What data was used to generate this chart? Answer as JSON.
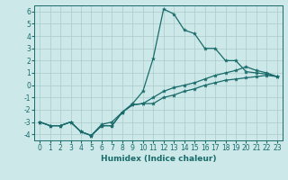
{
  "xlabel": "Humidex (Indice chaleur)",
  "bg_color": "#cce8e8",
  "grid_color": "#aacccc",
  "line_color": "#1a6b6b",
  "x_values": [
    0,
    1,
    2,
    3,
    4,
    5,
    6,
    7,
    8,
    9,
    10,
    11,
    12,
    13,
    14,
    15,
    16,
    17,
    18,
    19,
    20,
    21,
    22,
    23
  ],
  "line1": [
    -3.0,
    -3.3,
    -3.3,
    -3.0,
    -3.8,
    -4.1,
    -3.3,
    -3.3,
    -2.2,
    -1.6,
    -1.5,
    -1.5,
    -1.0,
    -0.8,
    -0.5,
    -0.3,
    0.0,
    0.2,
    0.4,
    0.5,
    0.6,
    0.7,
    0.8,
    0.7
  ],
  "line2": [
    -3.0,
    -3.3,
    -3.3,
    -3.0,
    -3.8,
    -4.1,
    -3.2,
    -3.0,
    -2.2,
    -1.5,
    -0.5,
    2.2,
    6.2,
    5.8,
    4.5,
    4.2,
    3.0,
    3.0,
    2.0,
    2.0,
    1.1,
    1.0,
    0.9,
    0.7
  ],
  "line3": [
    -3.0,
    -3.3,
    -3.3,
    -3.0,
    -3.8,
    -4.1,
    -3.3,
    -3.3,
    -2.2,
    -1.6,
    -1.5,
    -1.0,
    -0.5,
    -0.2,
    0.0,
    0.2,
    0.5,
    0.8,
    1.0,
    1.2,
    1.5,
    1.2,
    1.0,
    0.7
  ],
  "ylim": [
    -4.5,
    6.5
  ],
  "xlim": [
    -0.5,
    23.5
  ],
  "yticks": [
    -4,
    -3,
    -2,
    -1,
    0,
    1,
    2,
    3,
    4,
    5,
    6
  ],
  "xticks": [
    0,
    1,
    2,
    3,
    4,
    5,
    6,
    7,
    8,
    9,
    10,
    11,
    12,
    13,
    14,
    15,
    16,
    17,
    18,
    19,
    20,
    21,
    22,
    23
  ],
  "tick_fontsize": 5.5,
  "xlabel_fontsize": 6.5,
  "marker_size": 3,
  "line_width": 0.9
}
